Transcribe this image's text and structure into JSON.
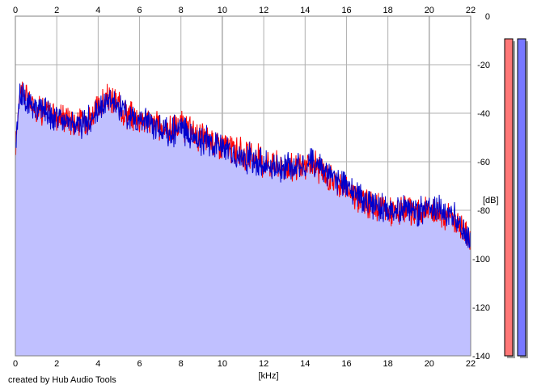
{
  "chart_data": {
    "type": "area",
    "title": "",
    "xlabel": "[kHz]",
    "ylabel": "[dB]",
    "xlim": [
      0,
      22
    ],
    "ylim": [
      -140,
      0
    ],
    "x_ticks": [
      0,
      2,
      4,
      6,
      8,
      10,
      12,
      14,
      16,
      18,
      20,
      22
    ],
    "y_ticks": [
      0,
      -20,
      -40,
      -60,
      -80,
      -100,
      -120,
      -140
    ],
    "grid": true,
    "series": [
      {
        "color": "#ff0000",
        "x": [
          0,
          0.2,
          0.5,
          1,
          1.5,
          2,
          2.5,
          3,
          3.5,
          4,
          4.5,
          5,
          5.5,
          6,
          6.5,
          7,
          7.5,
          8,
          8.5,
          9,
          9.5,
          10,
          10.5,
          11,
          11.5,
          12,
          12.5,
          13,
          13.5,
          14,
          14.5,
          15,
          15.5,
          16,
          16.5,
          17,
          17.5,
          18,
          18.5,
          19,
          19.5,
          20,
          20.5,
          21,
          21.5,
          22
        ],
        "values": [
          -55,
          -30,
          -33,
          -38,
          -39,
          -41,
          -42,
          -44,
          -42,
          -38,
          -34,
          -37,
          -41,
          -42,
          -43,
          -46,
          -47,
          -45,
          -48,
          -50,
          -51,
          -53,
          -55,
          -57,
          -58,
          -60,
          -61,
          -62,
          -63,
          -62,
          -61,
          -66,
          -68,
          -71,
          -74,
          -77,
          -79,
          -80,
          -81,
          -81,
          -81,
          -80,
          -81,
          -83,
          -86,
          -92
        ]
      },
      {
        "color": "#0000cc",
        "x": [
          0,
          0.2,
          0.5,
          1,
          1.5,
          2,
          2.5,
          3,
          3.5,
          4,
          4.5,
          5,
          5.5,
          6,
          6.5,
          7,
          7.5,
          8,
          8.5,
          9,
          9.5,
          10,
          10.5,
          11,
          11.5,
          12,
          12.5,
          13,
          13.5,
          14,
          14.5,
          15,
          15.5,
          16,
          16.5,
          17,
          17.5,
          18,
          18.5,
          19,
          19.5,
          20,
          20.5,
          21,
          21.5,
          22
        ],
        "values": [
          -56,
          -31,
          -34,
          -39,
          -40,
          -42,
          -43,
          -45,
          -43,
          -39,
          -35,
          -38,
          -42,
          -43,
          -44,
          -47,
          -48,
          -46,
          -49,
          -51,
          -52,
          -54,
          -56,
          -58,
          -59,
          -61,
          -62,
          -63,
          -62,
          -61,
          -60,
          -65,
          -67,
          -70,
          -73,
          -76,
          -78,
          -79,
          -80,
          -80,
          -80,
          -79,
          -80,
          -82,
          -85,
          -93
        ]
      }
    ],
    "level_meters": [
      {
        "color": "#ff7777",
        "level_db": -5
      },
      {
        "color": "#7777ff",
        "level_db": -5
      }
    ]
  },
  "footer": {
    "credit": "created by Hub Audio Tools"
  }
}
